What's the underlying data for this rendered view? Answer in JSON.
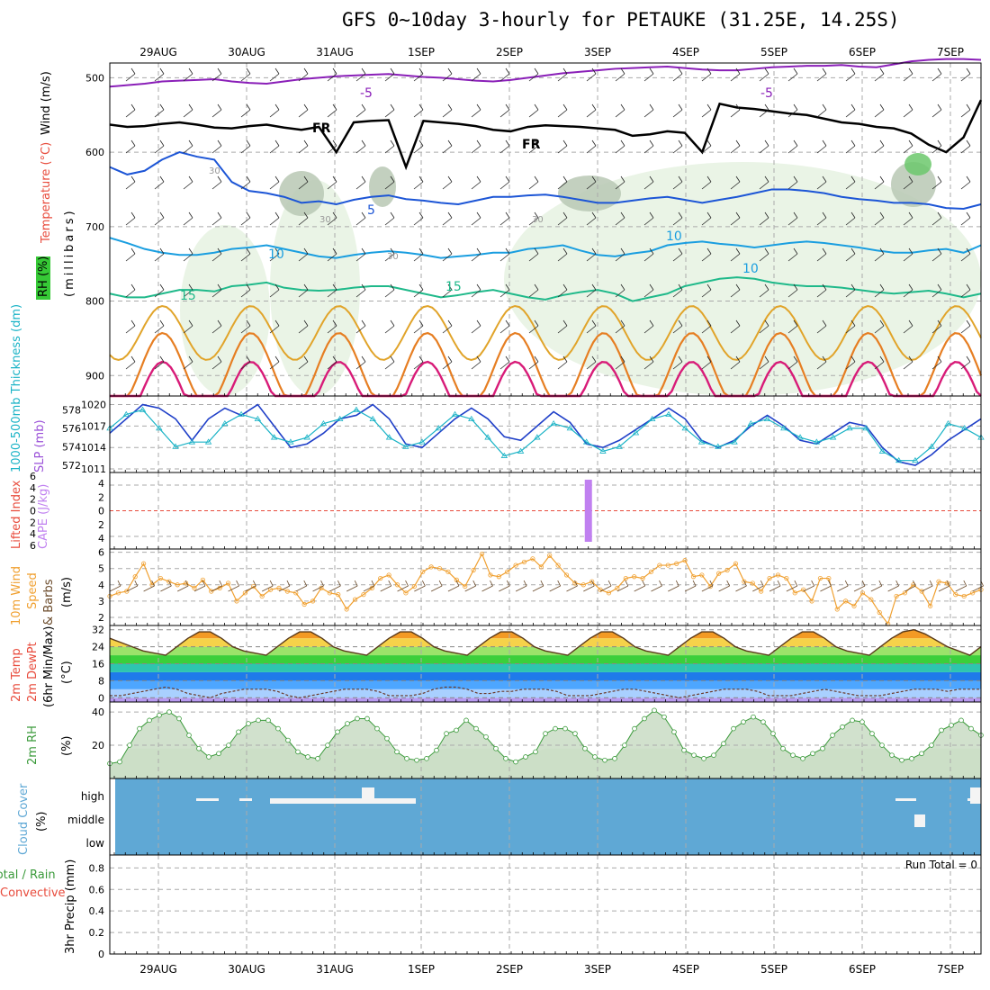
{
  "header": {
    "title": "GFS 0~10day 3-hourly for PETAUKE (31.25E, 14.25S)"
  },
  "colors": {
    "purple": "#8a1fb8",
    "black": "#000000",
    "blue": "#1c55d6",
    "lightblue": "#1a9ee0",
    "teal": "#1fb98a",
    "gold": "#e1a42a",
    "orange": "#e67e22",
    "magenta": "#d81b78",
    "rh_light": "#e6f2e2",
    "rh_mid": "#b9c8b4",
    "rh_dark": "#7fa17a",
    "slp": "#1f3fc8",
    "thick": "#1ab3c6",
    "wind10": "#f0a030",
    "cloud": "#5fa8d5",
    "grid": "#aaaaaa"
  },
  "chart_data": [
    {
      "panel": "upper-air",
      "type": "line",
      "x_labels": [
        "29AUG",
        "30AUG",
        "31AUG",
        "1SEP",
        "2SEP",
        "3SEP",
        "4SEP",
        "5SEP",
        "6SEP",
        "7SEP"
      ],
      "ylabel_parts": [
        "Wind (m/s)",
        "Temperature (°C)",
        "RH (%)"
      ],
      "yunit": "(millibars)",
      "yticks": [
        500,
        600,
        700,
        800,
        900
      ],
      "ylim": [
        1000,
        450
      ],
      "contour_labels": [
        "-5",
        "-5",
        "FR",
        "FR",
        "5",
        "10",
        "10",
        "15",
        "15",
        "10",
        "30",
        "30",
        "30",
        "30"
      ],
      "isotherm_levels": [
        {
          "name": "-5",
          "values": [
            512,
            510,
            508,
            505,
            504,
            503,
            502,
            505,
            507,
            508,
            505,
            502,
            500,
            498,
            497,
            496,
            495,
            497,
            499,
            500,
            502,
            504,
            505,
            503,
            500,
            497,
            494,
            492,
            490,
            488,
            487,
            486,
            485,
            487,
            489,
            490,
            490,
            488,
            486,
            485,
            484,
            484,
            483,
            485,
            486,
            482,
            478,
            476,
            475,
            475,
            476
          ]
        },
        {
          "name": "FR",
          "values": [
            563,
            566,
            565,
            562,
            560,
            563,
            567,
            568,
            565,
            563,
            567,
            570,
            566,
            600,
            560,
            558,
            557,
            620,
            558,
            560,
            562,
            565,
            570,
            572,
            566,
            564,
            565,
            566,
            568,
            570,
            578,
            576,
            572,
            574,
            600,
            535,
            540,
            542,
            545,
            548,
            550,
            555,
            560,
            562,
            566,
            568,
            575,
            590,
            600,
            580,
            530
          ]
        },
        {
          "name": "5",
          "values": [
            620,
            630,
            625,
            610,
            600,
            606,
            610,
            640,
            652,
            655,
            660,
            668,
            666,
            670,
            664,
            660,
            658,
            663,
            665,
            668,
            670,
            665,
            660,
            660,
            658,
            657,
            660,
            664,
            668,
            668,
            665,
            662,
            660,
            664,
            668,
            664,
            660,
            655,
            650,
            650,
            652,
            655,
            660,
            663,
            665,
            668,
            668,
            670,
            675,
            676,
            670
          ]
        },
        {
          "name": "10",
          "values": [
            715,
            722,
            730,
            735,
            738,
            738,
            735,
            730,
            728,
            725,
            730,
            735,
            740,
            742,
            738,
            735,
            733,
            735,
            738,
            742,
            740,
            738,
            735,
            735,
            730,
            728,
            725,
            732,
            738,
            740,
            736,
            733,
            725,
            722,
            720,
            723,
            725,
            728,
            725,
            722,
            720,
            722,
            725,
            728,
            732,
            735,
            735,
            732,
            730,
            735,
            725
          ]
        },
        {
          "name": "15",
          "values": [
            790,
            795,
            795,
            790,
            785,
            785,
            787,
            780,
            778,
            775,
            782,
            785,
            786,
            785,
            782,
            780,
            780,
            785,
            790,
            795,
            792,
            788,
            785,
            790,
            795,
            798,
            792,
            788,
            785,
            790,
            800,
            795,
            790,
            780,
            775,
            770,
            768,
            770,
            775,
            778,
            780,
            780,
            782,
            785,
            788,
            790,
            788,
            786,
            790,
            795,
            790
          ]
        }
      ],
      "notes": "isotherm values are pressure levels (mb) at 3-hourly steps"
    },
    {
      "panel": "slp-thickness",
      "type": "line",
      "ylabel_left": "1000-500mb Thickness (dm)",
      "ylabel_right": "SLP (mb)",
      "yticks_left": [
        572,
        574,
        576,
        578
      ],
      "yticks_right": [
        1011,
        1014,
        1017,
        1020
      ],
      "ylim_slp": [
        1010.5,
        1021.2
      ],
      "ylim_thick": [
        571.2,
        579.5
      ],
      "series": [
        {
          "name": "SLP (mb)",
          "values": [
            1016,
            1018,
            1020,
            1019.5,
            1018,
            1015,
            1018,
            1019.5,
            1018.5,
            1020,
            1017,
            1014,
            1014.5,
            1016,
            1018,
            1018.5,
            1020,
            1018,
            1014.5,
            1014,
            1016,
            1018,
            1019.5,
            1018,
            1015.5,
            1015,
            1017,
            1019,
            1017.5,
            1014.5,
            1014,
            1015,
            1016.5,
            1018,
            1019.5,
            1018,
            1015,
            1014,
            1015,
            1017,
            1018.5,
            1017,
            1015,
            1014.5,
            1016,
            1017.5,
            1017,
            1014,
            1012,
            1011.5,
            1013,
            1015,
            1016.5,
            1018
          ]
        },
        {
          "name": "1000-500mb Thickness (dm)",
          "values": [
            576,
            577.5,
            578,
            576,
            574,
            574.5,
            574.5,
            576.5,
            577.5,
            577,
            575,
            574.5,
            575,
            576.5,
            577,
            578,
            577,
            575,
            574,
            574.5,
            576,
            577.5,
            577,
            575,
            573,
            573.5,
            575,
            576.5,
            576,
            574.5,
            573.5,
            574,
            575.5,
            577,
            577.5,
            576,
            574.5,
            574,
            574.5,
            576.5,
            577,
            576,
            575,
            574.5,
            575,
            576,
            576,
            573.5,
            572.5,
            572.5,
            574,
            576.5,
            576,
            575
          ]
        }
      ]
    },
    {
      "panel": "cape-li",
      "type": "bar",
      "ylabel_left": "Lifted Index",
      "ylabel_right": "CAPE (J/kg)",
      "yticks_left": [
        "6",
        "4",
        "2",
        "0",
        "2",
        "4",
        "6"
      ],
      "yticks_right": [
        "4",
        "2",
        "0",
        "2",
        "4"
      ],
      "bars": [
        {
          "step": 43,
          "value": 4
        }
      ]
    },
    {
      "panel": "wind10m",
      "type": "line",
      "ylabel_parts": [
        "10m Wind",
        "Speed",
        "& Barbs"
      ],
      "yunit": "(m/s)",
      "yticks": [
        2,
        3,
        4,
        5,
        6
      ],
      "ylim": [
        1.5,
        6.2
      ],
      "series": [
        {
          "name": "10m Wind Speed",
          "values": [
            3.3,
            3.5,
            3.6,
            4.5,
            5.3,
            4.0,
            4.4,
            4.2,
            4.0,
            4.1,
            3.8,
            4.3,
            3.6,
            3.8,
            4.1,
            3.0,
            3.5,
            3.9,
            3.3,
            3.7,
            3.8,
            3.6,
            3.5,
            2.8,
            3.0,
            3.8,
            3.5,
            3.4,
            2.5,
            3.1,
            3.4,
            3.8,
            4.4,
            4.6,
            4.0,
            3.5,
            3.9,
            4.8,
            5.1,
            5.0,
            4.8,
            4.3,
            3.9,
            4.9,
            5.9,
            4.6,
            4.5,
            4.8,
            5.2,
            5.4,
            5.6,
            5.1,
            5.8,
            5.2,
            4.6,
            4.1,
            4.0,
            4.2,
            3.7,
            3.5,
            3.8,
            4.4,
            4.5,
            4.4,
            4.8,
            5.2,
            5.2,
            5.3,
            5.5,
            4.5,
            4.6,
            3.9,
            4.7,
            4.9,
            5.3,
            4.2,
            4.1,
            3.6,
            4.4,
            4.6,
            4.4,
            3.5,
            3.7,
            3.0,
            4.4,
            4.4,
            2.5,
            3.0,
            2.7,
            3.5,
            3.1,
            2.3,
            1.6,
            3.3,
            3.5,
            4.0,
            3.6,
            2.7,
            4.2,
            4.1,
            3.4,
            3.3,
            3.5,
            3.7
          ]
        }
      ]
    },
    {
      "panel": "temp2m",
      "type": "area",
      "ylabel_parts": [
        "2m Temp",
        "2m DewPt",
        "(6hr Min/Max)"
      ],
      "yunit": "(°C)",
      "yticks": [
        0,
        8,
        16,
        24,
        32
      ],
      "ylim": [
        -2,
        34
      ],
      "series": [
        {
          "name": "2m Temp",
          "values": [
            28,
            26,
            24,
            22,
            21,
            20,
            24,
            28,
            31,
            31,
            28,
            24,
            22,
            21,
            20,
            24,
            28,
            31,
            31,
            28,
            24,
            22,
            21,
            20,
            24,
            28,
            31,
            31,
            28,
            24,
            22,
            21,
            20,
            24,
            28,
            31,
            31,
            28,
            24,
            22,
            21,
            20,
            24,
            28,
            31,
            31,
            28,
            24,
            22,
            21,
            20,
            24,
            28,
            31,
            31,
            28,
            24,
            22,
            21,
            20,
            24,
            28,
            31,
            31,
            28,
            24,
            22,
            21,
            20,
            24,
            28,
            31,
            32,
            30,
            27,
            24,
            22,
            20,
            24
          ]
        },
        {
          "name": "2m DewPt",
          "values": [
            1,
            1,
            2,
            3,
            4,
            5,
            4,
            2,
            1,
            0,
            2,
            3,
            4,
            4,
            4,
            3,
            1,
            0,
            1,
            2,
            3,
            4,
            4,
            4,
            3,
            1,
            1,
            1,
            2,
            4,
            5,
            5,
            4,
            2,
            2,
            3,
            3,
            4,
            4,
            4,
            3,
            1,
            1,
            1,
            2,
            3,
            4,
            4,
            3,
            2,
            1,
            0,
            1,
            2,
            3,
            4,
            4,
            4,
            3,
            1,
            1,
            1,
            2,
            3,
            4,
            3,
            2,
            1,
            1,
            1,
            2,
            3,
            4,
            4,
            4,
            3,
            4,
            4,
            4
          ]
        }
      ]
    },
    {
      "panel": "rh2m",
      "type": "area",
      "ylabel_parts": [
        "2m RH"
      ],
      "yunit": "(%)",
      "yticks": [
        20,
        40
      ],
      "ylim": [
        0,
        46
      ],
      "series": [
        {
          "name": "2m RH",
          "values": [
            9,
            10,
            20,
            30,
            35,
            38,
            40,
            36,
            26,
            18,
            13,
            15,
            20,
            28,
            33,
            35,
            35,
            30,
            23,
            16,
            13,
            12,
            20,
            28,
            33,
            36,
            36,
            30,
            24,
            16,
            12,
            11,
            12,
            17,
            27,
            29,
            35,
            30,
            25,
            18,
            12,
            10,
            13,
            16,
            27,
            30,
            30,
            27,
            18,
            13,
            11,
            12,
            20,
            30,
            36,
            41,
            37,
            28,
            17,
            14,
            12,
            14,
            21,
            30,
            34,
            37,
            34,
            27,
            18,
            14,
            12,
            15,
            18,
            26,
            31,
            35,
            34,
            27,
            20,
            14,
            11,
            12,
            15,
            20,
            29,
            32,
            35,
            30,
            26
          ]
        }
      ]
    },
    {
      "panel": "cloud",
      "type": "bar",
      "ylabel_parts": [
        "Cloud Cover"
      ],
      "yunit": "(%)",
      "yticks": [
        "high",
        "middle",
        "low"
      ]
    },
    {
      "panel": "precip",
      "type": "bar",
      "ylabel_parts": [
        "Total / Rain",
        "Convective",
        "3hr Precip (mm)"
      ],
      "yticks": [
        "0",
        "0.2",
        "0.4",
        "0.6",
        "0.8"
      ],
      "ylim": [
        0,
        0.92
      ],
      "run_total": "Run Total = 0",
      "values": []
    }
  ]
}
